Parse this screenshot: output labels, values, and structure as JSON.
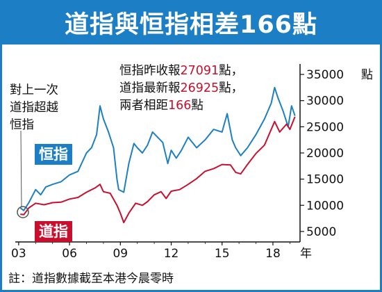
{
  "title": "道指與恒指相差166點",
  "annotation_left": [
    "對上一次",
    "道指超越",
    "恒指"
  ],
  "annotation_top": {
    "line1": {
      "pre": "恒指昨收報",
      "num": "27091",
      "post": "點，"
    },
    "line2": {
      "pre": "道指最新報",
      "num": "26925",
      "post": "點，"
    },
    "line3": {
      "pre": "兩者相距",
      "num": "166",
      "post": "點"
    }
  },
  "footnote": "註：道指數據截至本港今晨零時",
  "colors": {
    "hsi": "#1c7fc6",
    "dow": "#c8102e",
    "title_bg": "#1c7fc6"
  },
  "chart_data": {
    "type": "line",
    "title": "道指與恒指相差166點",
    "xlabel": "年",
    "ylabel": "點",
    "x_ticks": [
      "03",
      "06",
      "09",
      "12",
      "15",
      "18"
    ],
    "x_tick_years": [
      2003,
      2006,
      2009,
      2012,
      2015,
      2018
    ],
    "y_ticks": [
      "35000",
      "30000",
      "25000",
      "20000",
      "15000",
      "10000",
      "5000"
    ],
    "y_tick_values": [
      35000,
      30000,
      25000,
      20000,
      15000,
      10000,
      5000
    ],
    "ylim": [
      3000,
      37000
    ],
    "xlim": [
      2002.8,
      2019.6
    ],
    "grid": false,
    "series": [
      {
        "name": "恒指",
        "color": "#1c7fc6",
        "x": [
          2003.1,
          2003.3,
          2003.6,
          2004.0,
          2004.3,
          2004.6,
          2005.0,
          2005.5,
          2006.0,
          2006.5,
          2007.0,
          2007.3,
          2007.6,
          2007.8,
          2008.0,
          2008.3,
          2008.6,
          2008.8,
          2008.9,
          2009.2,
          2009.5,
          2009.8,
          2010.0,
          2010.3,
          2010.6,
          2010.9,
          2011.2,
          2011.5,
          2011.8,
          2012.0,
          2012.3,
          2012.6,
          2013.0,
          2013.5,
          2014.0,
          2014.5,
          2015.0,
          2015.3,
          2015.6,
          2015.8,
          2016.1,
          2016.5,
          2017.0,
          2017.5,
          2017.9,
          2018.1,
          2018.3,
          2018.6,
          2018.9,
          2019.1,
          2019.3
        ],
        "values": [
          9500,
          9000,
          10500,
          13000,
          12000,
          13500,
          14000,
          14500,
          15800,
          16500,
          20000,
          21000,
          23500,
          29000,
          26500,
          24000,
          21000,
          15000,
          13000,
          12500,
          18000,
          21800,
          21000,
          20000,
          21500,
          24000,
          23000,
          22000,
          18000,
          20500,
          19000,
          20500,
          23000,
          21000,
          22500,
          24500,
          24000,
          27500,
          22500,
          21000,
          19500,
          21000,
          23500,
          26500,
          29500,
          32500,
          30500,
          28000,
          25000,
          29000,
          27091
        ]
      },
      {
        "name": "道指",
        "color": "#c8102e",
        "x": [
          2003.1,
          2003.3,
          2003.6,
          2004.0,
          2004.5,
          2005.0,
          2005.5,
          2006.0,
          2006.5,
          2007.0,
          2007.5,
          2007.8,
          2008.0,
          2008.4,
          2008.8,
          2009.0,
          2009.2,
          2009.5,
          2009.9,
          2010.3,
          2010.6,
          2011.0,
          2011.4,
          2011.7,
          2012.0,
          2012.5,
          2013.0,
          2013.5,
          2014.0,
          2014.5,
          2015.0,
          2015.5,
          2015.8,
          2016.1,
          2016.5,
          2017.0,
          2017.5,
          2017.9,
          2018.1,
          2018.4,
          2018.8,
          2019.0,
          2019.3
        ],
        "values": [
          8300,
          8200,
          9500,
          10400,
          10100,
          10500,
          10600,
          11200,
          11500,
          12500,
          13300,
          14000,
          12600,
          12300,
          10000,
          8500,
          6700,
          8500,
          10400,
          10000,
          10700,
          12000,
          12600,
          11300,
          12700,
          13000,
          14000,
          15100,
          16500,
          17000,
          17800,
          17700,
          16300,
          16000,
          17800,
          19900,
          21500,
          24500,
          26000,
          24000,
          25500,
          24500,
          26925
        ]
      }
    ]
  }
}
